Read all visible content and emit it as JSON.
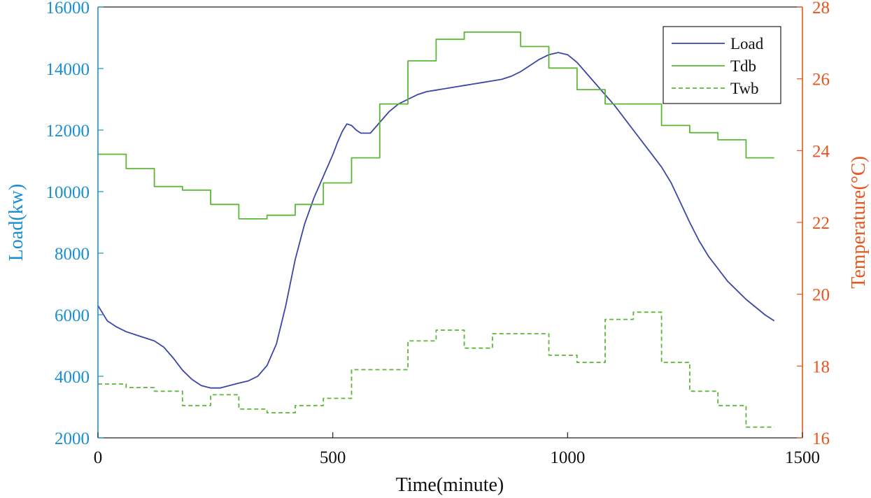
{
  "chart_data": {
    "type": "line",
    "title": "",
    "xlabel": "Time(minute)",
    "ylabel_left": "Load(kw)",
    "ylabel_right": "Temperature(°C)",
    "xlim": [
      0,
      1500
    ],
    "ylim_left": [
      2000,
      16000
    ],
    "ylim_right": [
      16,
      28
    ],
    "xticks": [
      "0",
      "500",
      "1000",
      "1500"
    ],
    "yticks_left": [
      "2000",
      "4000",
      "6000",
      "8000",
      "10000",
      "12000",
      "14000",
      "16000"
    ],
    "yticks_right": [
      "16",
      "18",
      "20",
      "22",
      "24",
      "26",
      "28"
    ],
    "grid": false,
    "legend_position": "top-right",
    "series": [
      {
        "name": "Load",
        "axis": "left",
        "color": "#3a46a8",
        "style": "solid",
        "x": [
          0,
          20,
          40,
          60,
          80,
          100,
          120,
          140,
          160,
          180,
          200,
          220,
          240,
          260,
          280,
          300,
          320,
          340,
          360,
          380,
          400,
          420,
          440,
          460,
          480,
          500,
          510,
          520,
          530,
          540,
          550,
          560,
          580,
          600,
          620,
          640,
          660,
          680,
          700,
          720,
          740,
          760,
          780,
          800,
          820,
          840,
          860,
          880,
          900,
          920,
          940,
          960,
          980,
          1000,
          1020,
          1040,
          1060,
          1080,
          1100,
          1120,
          1140,
          1160,
          1180,
          1200,
          1220,
          1240,
          1260,
          1280,
          1300,
          1320,
          1340,
          1360,
          1380,
          1400,
          1420,
          1440
        ],
        "y": [
          6300,
          5800,
          5600,
          5450,
          5350,
          5250,
          5150,
          4950,
          4600,
          4200,
          3900,
          3700,
          3620,
          3620,
          3700,
          3780,
          3850,
          4000,
          4350,
          5050,
          6300,
          7800,
          8950,
          9800,
          10500,
          11200,
          11600,
          11950,
          12200,
          12150,
          12000,
          11900,
          11900,
          12250,
          12600,
          12850,
          13000,
          13150,
          13250,
          13300,
          13350,
          13400,
          13450,
          13500,
          13550,
          13600,
          13650,
          13750,
          13900,
          14100,
          14300,
          14450,
          14520,
          14450,
          14200,
          13850,
          13500,
          13150,
          12800,
          12400,
          12000,
          11600,
          11200,
          10800,
          10300,
          9650,
          9000,
          8400,
          7900,
          7500,
          7100,
          6800,
          6500,
          6250,
          6000,
          5800
        ]
      },
      {
        "name": "Tdb",
        "axis": "right",
        "color": "#5cb737",
        "style": "solid",
        "x": [
          0,
          60,
          60,
          120,
          120,
          180,
          180,
          240,
          240,
          300,
          300,
          360,
          360,
          420,
          420,
          480,
          480,
          540,
          540,
          600,
          600,
          660,
          660,
          720,
          720,
          780,
          780,
          840,
          840,
          900,
          900,
          960,
          960,
          1020,
          1020,
          1080,
          1080,
          1140,
          1140,
          1200,
          1200,
          1260,
          1260,
          1320,
          1320,
          1380,
          1380,
          1440
        ],
        "y": [
          23.9,
          23.9,
          23.5,
          23.5,
          23.0,
          23.0,
          22.9,
          22.9,
          22.5,
          22.5,
          22.1,
          22.1,
          22.2,
          22.2,
          22.5,
          22.5,
          23.1,
          23.1,
          23.8,
          23.8,
          25.3,
          25.3,
          26.5,
          26.5,
          27.1,
          27.1,
          27.3,
          27.3,
          27.3,
          27.3,
          26.9,
          26.9,
          26.3,
          26.3,
          25.7,
          25.7,
          25.3,
          25.3,
          25.3,
          25.3,
          24.7,
          24.7,
          24.5,
          24.5,
          24.3,
          24.3,
          23.8,
          23.8
        ]
      },
      {
        "name": "Twb",
        "axis": "right",
        "color": "#5cb737",
        "style": "dashed",
        "x": [
          0,
          60,
          60,
          120,
          120,
          180,
          180,
          240,
          240,
          300,
          300,
          360,
          360,
          420,
          420,
          480,
          480,
          540,
          540,
          600,
          600,
          660,
          660,
          720,
          720,
          780,
          780,
          840,
          840,
          900,
          900,
          960,
          960,
          1020,
          1020,
          1080,
          1080,
          1140,
          1140,
          1200,
          1200,
          1260,
          1260,
          1320,
          1320,
          1380,
          1380,
          1440
        ],
        "y": [
          17.5,
          17.5,
          17.4,
          17.4,
          17.3,
          17.3,
          16.9,
          16.9,
          17.2,
          17.2,
          16.8,
          16.8,
          16.7,
          16.7,
          16.9,
          16.9,
          17.1,
          17.1,
          17.9,
          17.9,
          17.9,
          17.9,
          18.7,
          18.7,
          19.0,
          19.0,
          18.5,
          18.5,
          18.9,
          18.9,
          18.9,
          18.9,
          18.3,
          18.3,
          18.1,
          18.1,
          19.3,
          19.3,
          19.5,
          19.5,
          18.1,
          18.1,
          17.3,
          17.3,
          16.9,
          16.9,
          16.3,
          16.3
        ]
      }
    ]
  }
}
